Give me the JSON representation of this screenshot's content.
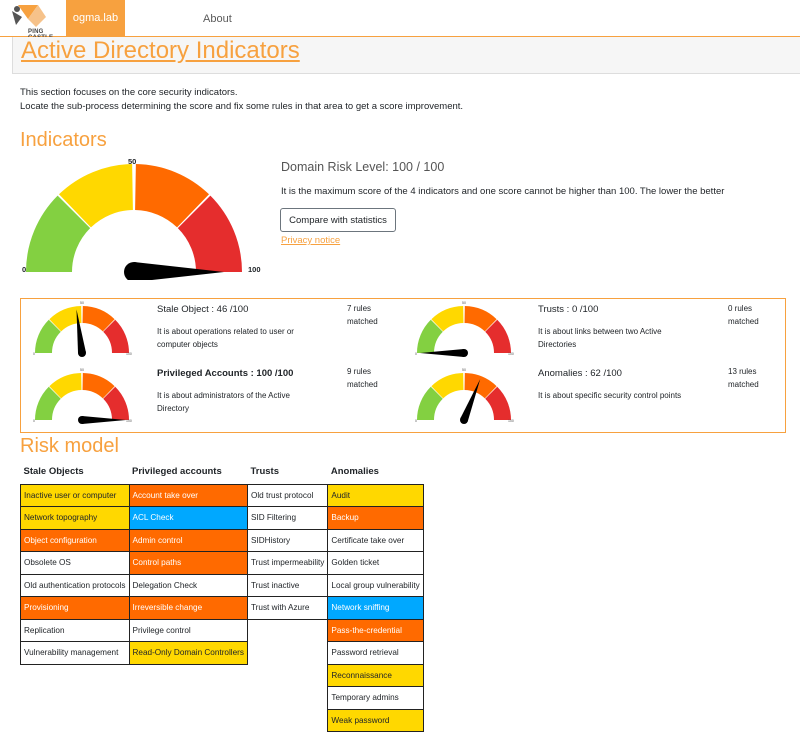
{
  "nav": {
    "logo_text": "PING CASTLE",
    "domain_tab": "ogma.lab",
    "about_tab": "About"
  },
  "page_title": "Active Directory Indicators",
  "intro": {
    "line1": "This section focuses on the core security indicators.",
    "line2": "Locate the sub-process determining the score and fix some rules in that area to get a score improvement."
  },
  "indicators": {
    "heading": "Indicators",
    "gauge": {
      "min_label": "0",
      "mid_label": "50",
      "max_label": "100",
      "value": 100
    },
    "risk_level": "Domain Risk Level: 100 / 100",
    "description": "It is the maximum score of the 4 indicators and one score cannot be higher than 100. The lower the better",
    "compare_button": "Compare with statistics",
    "privacy_link": "Privacy notice"
  },
  "sub_indicators": [
    {
      "title": "Stale Object : 46 /100",
      "bold": false,
      "description": "It is about operations related to user or computer objects",
      "rules": "7 rules matched",
      "value": 46
    },
    {
      "title": "Trusts : 0 /100",
      "bold": false,
      "description": "It is about links between two Active Directories",
      "rules": "0 rules matched",
      "value": 0
    },
    {
      "title": "Privileged Accounts : 100 /100",
      "bold": true,
      "description": "It is about administrators of the Active Directory",
      "rules": "9 rules matched",
      "value": 100
    },
    {
      "title": "Anomalies : 62 /100",
      "bold": false,
      "description": "It is about specific security control points",
      "rules": "13 rules matched",
      "value": 62
    }
  ],
  "mini_ticks": {
    "min": "0",
    "mid": "50",
    "max": "100"
  },
  "risk_model": {
    "heading": "Risk model",
    "columns": [
      "Stale Objects",
      "Privileged accounts",
      "Trusts",
      "Anomalies"
    ],
    "rows": [
      [
        [
          "Inactive user or computer",
          "y"
        ],
        [
          "Account take over",
          "o"
        ],
        [
          "Old trust protocol",
          "w"
        ],
        [
          "Audit",
          "y"
        ]
      ],
      [
        [
          "Network topography",
          "y"
        ],
        [
          "ACL Check",
          "bl"
        ],
        [
          "SID Filtering",
          "w"
        ],
        [
          "Backup",
          "o"
        ]
      ],
      [
        [
          "Object configuration",
          "o"
        ],
        [
          "Admin control",
          "o"
        ],
        [
          "SIDHistory",
          "w"
        ],
        [
          "Certificate take over",
          "w"
        ]
      ],
      [
        [
          "Obsolete OS",
          "w"
        ],
        [
          "Control paths",
          "o"
        ],
        [
          "Trust impermeability",
          "w"
        ],
        [
          "Golden ticket",
          "w"
        ]
      ],
      [
        [
          "Old authentication protocols",
          "w"
        ],
        [
          "Delegation Check",
          "w"
        ],
        [
          "Trust inactive",
          "w"
        ],
        [
          "Local group vulnerability",
          "w"
        ]
      ],
      [
        [
          "Provisioning",
          "o"
        ],
        [
          "Irreversible change",
          "o"
        ],
        [
          "Trust with Azure",
          "w"
        ],
        [
          "Network sniffing",
          "bl"
        ]
      ],
      [
        [
          "Replication",
          "w"
        ],
        [
          "Privilege control",
          "w"
        ],
        null,
        [
          "Pass-the-credential",
          "o"
        ]
      ],
      [
        [
          "Vulnerability management",
          "w"
        ],
        [
          "Read-Only Domain Controllers",
          "y"
        ],
        null,
        [
          "Password retrieval",
          "w"
        ]
      ],
      [
        null,
        null,
        null,
        [
          "Reconnaissance",
          "y"
        ]
      ],
      [
        null,
        null,
        null,
        [
          "Temporary admins",
          "w"
        ]
      ],
      [
        null,
        null,
        null,
        [
          "Weak password",
          "y"
        ]
      ]
    ]
  },
  "colors": {
    "accent": "#f7a13f",
    "green": "#83d041",
    "yellow": "#ffd800",
    "orange": "#ff6a00",
    "red": "#e52d2d",
    "blue": "#00a8ff"
  }
}
